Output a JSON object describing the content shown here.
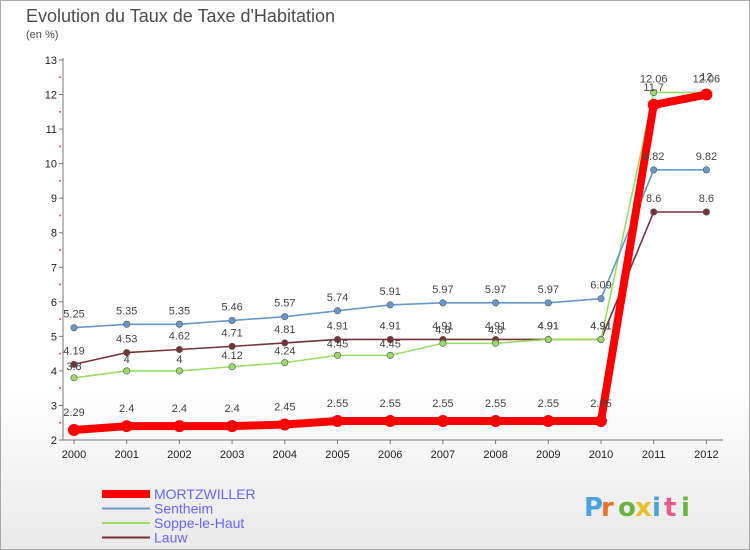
{
  "title": "Evolution du Taux de Taxe d'Habitation",
  "subtitle": "(en %)",
  "logo": "Proxiti",
  "chart_data": {
    "type": "line",
    "title": "Evolution du Taux de Taxe d'Habitation",
    "ylabel": "(en %)",
    "xlabel": "",
    "x": [
      2000,
      2001,
      2002,
      2003,
      2004,
      2005,
      2006,
      2007,
      2008,
      2009,
      2010,
      2011,
      2012
    ],
    "ylim": [
      2,
      13
    ],
    "yticks": [
      2,
      3,
      4,
      5,
      6,
      7,
      8,
      9,
      10,
      11,
      12,
      13
    ],
    "grid": false,
    "legend": "bottom-left",
    "series": [
      {
        "name": "MORTZWILLER",
        "color": "#ff0000",
        "values": [
          2.29,
          2.4,
          2.4,
          2.4,
          2.45,
          2.55,
          2.55,
          2.55,
          2.55,
          2.55,
          2.55,
          11.7,
          12.0
        ],
        "labels": [
          "2.29",
          "2.4",
          "2.4",
          "2.4",
          "2.45",
          "2.55",
          "2.55",
          "2.55",
          "2.55",
          "2.55",
          "2.55",
          "11.7",
          "12"
        ]
      },
      {
        "name": "Sentheim",
        "color": "#6699cc",
        "values": [
          5.25,
          5.35,
          5.35,
          5.46,
          5.57,
          5.74,
          5.91,
          5.97,
          5.97,
          5.97,
          6.09,
          9.82,
          9.82
        ],
        "labels": [
          "5.25",
          "5.35",
          "5.35",
          "5.46",
          "5.57",
          "5.74",
          "5.91",
          "5.97",
          "5.97",
          "5.97",
          "6.09",
          "9.82",
          "9.82"
        ]
      },
      {
        "name": "Soppe-le-Haut",
        "color": "#99dd66",
        "values": [
          3.8,
          4.0,
          4.0,
          4.12,
          4.24,
          4.45,
          4.45,
          4.8,
          4.8,
          4.91,
          4.91,
          12.06,
          12.06
        ],
        "labels": [
          "3.8",
          "4",
          "4",
          "4.12",
          "4.24",
          "4.45",
          "4.45",
          "4.8",
          "4.8",
          "4.91",
          "4.91",
          "12.06",
          "12.06"
        ]
      },
      {
        "name": "Lauw",
        "color": "#773333",
        "values": [
          4.19,
          4.53,
          4.62,
          4.71,
          4.81,
          4.91,
          4.91,
          4.91,
          4.91,
          4.91,
          4.91,
          8.6,
          8.6
        ],
        "labels": [
          "4.19",
          "4.53",
          "4.62",
          "4.71",
          "4.81",
          "4.91",
          "4.91",
          "4.91",
          "4.91",
          "4.91",
          "4.91",
          "8.6",
          "8.6"
        ]
      }
    ]
  }
}
